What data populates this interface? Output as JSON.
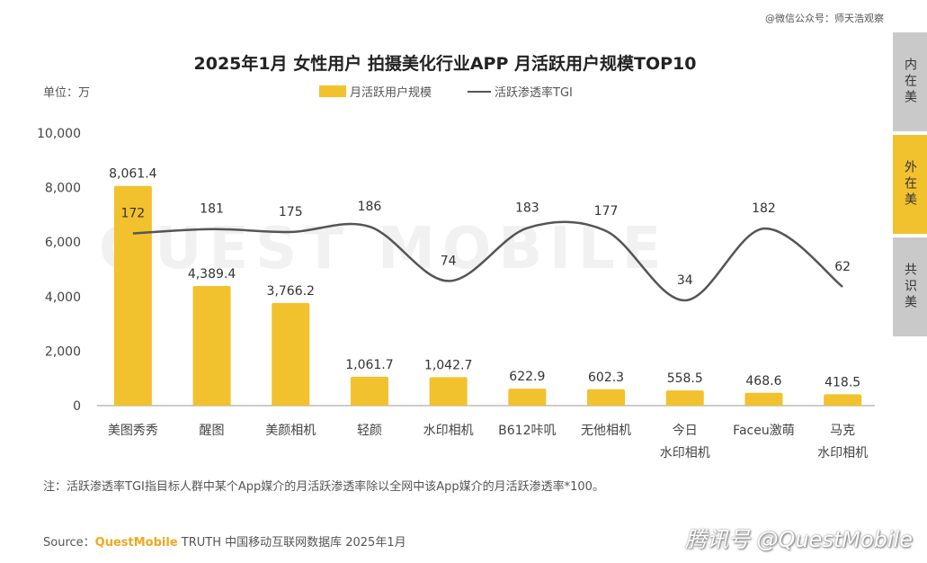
{
  "top_credit": "@微信公众号：师天浩观察",
  "unit_label": "单位：万",
  "watermark": "QUEST MOBILE",
  "side_tabs": [
    {
      "label": "内在美",
      "active": false
    },
    {
      "label": "外在美",
      "active": true
    },
    {
      "label": "共识美",
      "active": false
    }
  ],
  "note": "注：活跃渗透率TGI指目标人群中某个App媒介的月活跃渗透率除以全网中该App媒介的月活跃渗透率*100。",
  "source": {
    "prefix": "Source：",
    "brand": "QuestMobile",
    "text": " TRUTH 中国移动互联网数据库 2025年1月"
  },
  "footer_brand": "腾讯号 @QuestMobile",
  "colors": {
    "bar": "#f2c12e",
    "line": "#555555"
  },
  "chart_data": {
    "type": "bar",
    "title": "2025年1月 女性用户 拍摄美化行业APP 月活跃用户规模TOP10",
    "categories": [
      "美图秀秀",
      "醒图",
      "美颜相机",
      "轻颜",
      "水印相机",
      "B612咔叽",
      "无他相机",
      "今日\n水印相机",
      "Faceu激萌",
      "马克\n水印相机"
    ],
    "series": [
      {
        "name": "月活跃用户规模",
        "type": "bar",
        "values": [
          8061.4,
          4389.4,
          3766.2,
          1061.7,
          1042.7,
          622.9,
          602.3,
          558.5,
          468.6,
          418.5
        ],
        "labels": [
          "8,061.4",
          "4,389.4",
          "3,766.2",
          "1,061.7",
          "1,042.7",
          "622.9",
          "602.3",
          "558.5",
          "468.6",
          "418.5"
        ]
      },
      {
        "name": "活跃渗透率TGI",
        "type": "line",
        "values": [
          172,
          181,
          175,
          186,
          74,
          183,
          177,
          34,
          182,
          62
        ]
      }
    ],
    "ylim": [
      0,
      10000
    ],
    "yticks": [
      "0",
      "2,000",
      "4,000",
      "6,000",
      "8,000",
      "10,000"
    ],
    "legend_position": "top"
  }
}
